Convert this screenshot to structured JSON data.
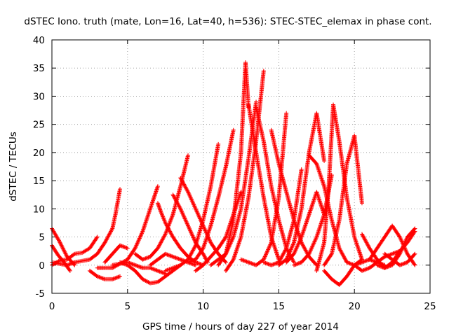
{
  "chart_data": {
    "type": "scatter",
    "title": "dSTEC Iono. truth (mate, Lon=16, Lat=40, h=536): STEC-STEC_elemax in phase cont.",
    "xlabel": "GPS time / hours of day 227 of year 2014",
    "ylabel": "dSTEC  / TECUs",
    "xlim": [
      0,
      25
    ],
    "ylim": [
      -5,
      40
    ],
    "x_ticks": [
      0,
      5,
      10,
      15,
      20,
      25
    ],
    "y_ticks": [
      -5,
      0,
      5,
      10,
      15,
      20,
      25,
      30,
      35,
      40
    ],
    "grid": true,
    "marker": "+",
    "color": "#ff0000",
    "series": [
      {
        "x": [
          0.0,
          0.5,
          1.0,
          1.5
        ],
        "y": [
          6.5,
          4.2,
          1.5,
          0.0
        ]
      },
      {
        "x": [
          0.0,
          0.4,
          0.8,
          1.2
        ],
        "y": [
          3.5,
          1.8,
          0.5,
          -1.0
        ]
      },
      {
        "x": [
          0.0,
          0.5,
          1.0,
          1.5,
          2.0,
          2.5,
          3.0
        ],
        "y": [
          0.0,
          0.8,
          1.0,
          2.0,
          2.2,
          3.0,
          5.0
        ]
      },
      {
        "x": [
          0.0,
          1.0,
          1.5,
          2.5,
          3.0,
          3.5,
          4.0,
          4.2,
          4.5
        ],
        "y": [
          0.5,
          0.0,
          0.5,
          1.0,
          2.0,
          4.0,
          6.5,
          9.0,
          13.5
        ]
      },
      {
        "x": [
          2.5,
          3.0,
          3.5,
          4.0,
          4.5
        ],
        "y": [
          -1.0,
          -2.0,
          -2.5,
          -2.5,
          -2.0
        ]
      },
      {
        "x": [
          3.5,
          4.0,
          4.5,
          5.0
        ],
        "y": [
          0.5,
          2.0,
          3.5,
          3.0
        ]
      },
      {
        "x": [
          3.0,
          4.0,
          5.0,
          5.5,
          6.0,
          6.5,
          7.0
        ],
        "y": [
          -0.5,
          -0.5,
          1.0,
          3.0,
          6.0,
          10.0,
          14.0
        ]
      },
      {
        "x": [
          4.0,
          5.0,
          5.5,
          6.0,
          6.5,
          7.0,
          7.5
        ],
        "y": [
          0.0,
          0.5,
          0.0,
          -0.5,
          -0.5,
          -1.0,
          -1.5
        ]
      },
      {
        "x": [
          4.5,
          5.0,
          5.5,
          6.0,
          6.5,
          7.0,
          7.5,
          8.0,
          8.5
        ],
        "y": [
          0.5,
          0.0,
          -1.0,
          -2.5,
          -3.2,
          -3.0,
          -2.0,
          -1.0,
          0.0
        ]
      },
      {
        "x": [
          5.5,
          6.0,
          6.5,
          7.0,
          7.5,
          8.0,
          8.5,
          9.0
        ],
        "y": [
          2.0,
          1.0,
          1.5,
          3.0,
          5.5,
          9.0,
          14.0,
          19.5
        ]
      },
      {
        "x": [
          6.5,
          7.0,
          7.5,
          8.0,
          8.5,
          9.0,
          9.5
        ],
        "y": [
          0.0,
          1.0,
          2.0,
          1.5,
          1.0,
          0.5,
          0.0
        ]
      },
      {
        "x": [
          7.0,
          7.2,
          7.5,
          8.0,
          8.5,
          9.0,
          9.5,
          10.0
        ],
        "y": [
          11.0,
          9.5,
          7.5,
          5.0,
          3.0,
          1.5,
          0.5,
          0.0
        ]
      },
      {
        "x": [
          8.0,
          8.5,
          9.0,
          9.5,
          10.0,
          10.3
        ],
        "y": [
          12.5,
          10.0,
          7.0,
          4.0,
          2.0,
          0.5
        ]
      },
      {
        "x": [
          8.5,
          9.0,
          9.5,
          10.0,
          10.5,
          11.0,
          11.5
        ],
        "y": [
          15.5,
          13.0,
          10.0,
          7.0,
          4.0,
          2.0,
          0.5
        ]
      },
      {
        "x": [
          7.5,
          8.5,
          9.0,
          9.5,
          10.0,
          10.5,
          11.0
        ],
        "y": [
          -1.0,
          0.0,
          1.0,
          3.5,
          8.0,
          14.0,
          21.5
        ]
      },
      {
        "x": [
          9.5,
          10.0,
          10.5,
          11.0,
          11.5,
          12.0,
          12.5
        ],
        "y": [
          -1.0,
          0.0,
          1.5,
          3.0,
          5.0,
          9.0,
          13.0
        ]
      },
      {
        "x": [
          9.0,
          9.5,
          10.0,
          10.5,
          11.0,
          11.5,
          12.0
        ],
        "y": [
          0.5,
          1.0,
          3.0,
          7.0,
          12.0,
          17.5,
          24.0
        ]
      },
      {
        "x": [
          10.5,
          11.0,
          11.5,
          12.0,
          12.5,
          13.0,
          13.5
        ],
        "y": [
          0.0,
          1.0,
          2.0,
          5.0,
          10.0,
          19.0,
          29.0
        ]
      },
      {
        "x": [
          11.0,
          11.5,
          12.0,
          12.5,
          12.8,
          13.0
        ],
        "y": [
          0.0,
          2.0,
          8.0,
          20.0,
          36.0,
          28.0
        ]
      },
      {
        "x": [
          11.5,
          12.0,
          12.5,
          13.0,
          13.5,
          14.0
        ],
        "y": [
          -1.0,
          1.0,
          5.0,
          12.0,
          22.0,
          34.5
        ]
      },
      {
        "x": [
          13.0,
          13.5,
          14.0,
          14.5,
          15.0
        ],
        "y": [
          28.5,
          20.0,
          12.0,
          5.0,
          1.0
        ]
      },
      {
        "x": [
          13.5,
          14.0,
          14.5,
          15.0,
          15.5,
          16.0
        ],
        "y": [
          28.0,
          22.0,
          14.0,
          8.0,
          3.0,
          0.5
        ]
      },
      {
        "x": [
          12.5,
          13.0,
          13.5,
          14.0,
          14.5,
          15.0,
          15.5
        ],
        "y": [
          1.0,
          0.5,
          0.0,
          1.0,
          4.0,
          12.0,
          27.0
        ]
      },
      {
        "x": [
          14.0,
          14.5,
          15.0,
          15.5,
          16.0,
          16.5
        ],
        "y": [
          0.5,
          0.0,
          0.5,
          3.0,
          8.0,
          17.0
        ]
      },
      {
        "x": [
          14.5,
          15.0,
          15.5,
          16.0,
          16.5,
          17.0,
          17.5
        ],
        "y": [
          24.0,
          18.0,
          13.0,
          8.0,
          4.0,
          1.5,
          0.0
        ]
      },
      {
        "x": [
          15.0,
          15.5,
          16.0,
          16.5,
          17.0,
          17.5,
          18.0
        ],
        "y": [
          0.0,
          1.0,
          4.0,
          10.0,
          20.0,
          27.0,
          18.5
        ]
      },
      {
        "x": [
          15.5,
          16.0,
          16.5,
          17.0,
          17.5,
          18.0
        ],
        "y": [
          0.5,
          2.0,
          5.0,
          9.0,
          13.0,
          9.0
        ]
      },
      {
        "x": [
          16.0,
          16.5,
          17.0,
          17.5,
          18.0,
          18.5
        ],
        "y": [
          0.0,
          0.5,
          2.0,
          5.0,
          9.0,
          16.0
        ]
      },
      {
        "x": [
          17.0,
          17.5,
          18.0,
          18.5,
          19.0,
          19.5
        ],
        "y": [
          19.5,
          18.0,
          14.0,
          8.0,
          3.0,
          0.5
        ]
      },
      {
        "x": [
          17.5,
          18.0,
          18.3,
          18.6,
          19.0,
          19.5,
          20.0,
          20.5
        ],
        "y": [
          -1.0,
          4.0,
          14.0,
          28.5,
          22.0,
          12.0,
          5.0,
          1.0
        ]
      },
      {
        "x": [
          18.0,
          18.5,
          19.0,
          19.5,
          20.0,
          20.5
        ],
        "y": [
          0.0,
          2.0,
          8.0,
          18.0,
          23.0,
          11.0
        ]
      },
      {
        "x": [
          18.0,
          18.5,
          19.0,
          19.5,
          20.0,
          20.5
        ],
        "y": [
          -1.0,
          -2.5,
          -3.5,
          -2.0,
          0.0,
          1.0
        ]
      },
      {
        "x": [
          19.5,
          20.0,
          20.5,
          21.0,
          21.5,
          22.0
        ],
        "y": [
          0.5,
          0.0,
          0.5,
          1.0,
          0.5,
          0.0
        ]
      },
      {
        "x": [
          20.0,
          20.5,
          21.0,
          21.5,
          22.0,
          22.5,
          23.0
        ],
        "y": [
          0.0,
          -1.0,
          -0.5,
          0.5,
          1.5,
          2.0,
          2.5
        ]
      },
      {
        "x": [
          20.5,
          21.0,
          21.5,
          22.0,
          22.5,
          23.0,
          23.5,
          24.0
        ],
        "y": [
          5.5,
          3.0,
          1.0,
          -0.5,
          0.0,
          2.0,
          5.0,
          6.5
        ]
      },
      {
        "x": [
          21.0,
          21.5,
          22.0,
          22.5,
          23.0,
          23.5,
          24.0
        ],
        "y": [
          1.0,
          3.0,
          5.0,
          7.0,
          5.0,
          2.0,
          0.0
        ]
      },
      {
        "x": [
          21.5,
          22.0,
          22.5,
          23.0,
          23.5,
          24.0
        ],
        "y": [
          0.0,
          -0.5,
          0.5,
          2.5,
          4.0,
          6.0
        ]
      },
      {
        "x": [
          22.0,
          22.5,
          23.0,
          23.5,
          24.0
        ],
        "y": [
          2.0,
          1.0,
          0.0,
          0.5,
          2.0
        ]
      }
    ]
  }
}
